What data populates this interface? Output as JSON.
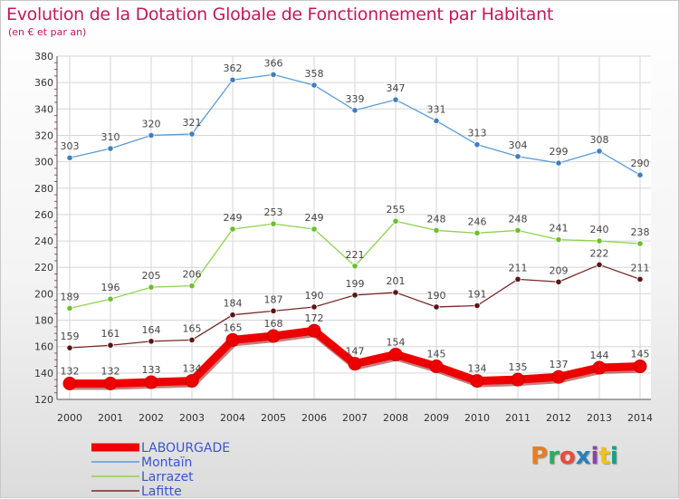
{
  "title": "Evolution de la Dotation Globale de Fonctionnement par Habitant",
  "subtitle": "(en € et par an)",
  "logo": {
    "text": "Proxiti",
    "colors": [
      "#e67e22",
      "#27ae60",
      "#e74c3c",
      "#2980b9",
      "#8e44ad",
      "#f1c40f",
      "#16a085"
    ]
  },
  "chart_data": {
    "type": "line",
    "title": "Evolution de la Dotation Globale de Fonctionnement par Habitant",
    "subtitle": "(en € et par an)",
    "xlabel": "",
    "ylabel": "",
    "ylim": [
      120,
      380
    ],
    "ytick_step": 20,
    "grid": true,
    "categories": [
      "2000",
      "2001",
      "2002",
      "2003",
      "2004",
      "2005",
      "2006",
      "2007",
      "2008",
      "2009",
      "2010",
      "2011",
      "2012",
      "2013",
      "2014"
    ],
    "series": [
      {
        "name": "Montaïn",
        "color": "#5b9bd5",
        "marker": "#3f7fbf",
        "bold": false,
        "values": [
          303,
          310,
          320,
          321,
          362,
          366,
          358,
          339,
          347,
          331,
          313,
          304,
          299,
          308,
          290
        ]
      },
      {
        "name": "Larrazet",
        "color": "#8fd14f",
        "marker": "#6cbf2e",
        "bold": false,
        "values": [
          189,
          196,
          205,
          206,
          249,
          253,
          249,
          221,
          255,
          248,
          246,
          248,
          241,
          240,
          238
        ]
      },
      {
        "name": "Lafitte",
        "color": "#7a2828",
        "marker": "#5a1515",
        "bold": false,
        "values": [
          159,
          161,
          164,
          165,
          184,
          187,
          190,
          199,
          201,
          190,
          191,
          211,
          209,
          222,
          211
        ]
      },
      {
        "name": "LABOURGADE",
        "color": "#ee0000",
        "marker": "#ee0000",
        "bold": true,
        "values": [
          132,
          132,
          133,
          134,
          165,
          168,
          172,
          147,
          154,
          145,
          134,
          135,
          137,
          144,
          145
        ]
      }
    ],
    "legend": [
      {
        "name": "LABOURGADE",
        "color": "#ee0000",
        "text_color": "#3a55cc",
        "bold": true
      },
      {
        "name": "Montaïn",
        "color": "#5b9bd5",
        "text_color": "#3a55cc",
        "bold": false
      },
      {
        "name": "Larrazet",
        "color": "#8fd14f",
        "text_color": "#3a55cc",
        "bold": false
      },
      {
        "name": "Lafitte",
        "color": "#7a2828",
        "text_color": "#3a55cc",
        "bold": false
      }
    ],
    "legend_position": "bottom-left"
  }
}
